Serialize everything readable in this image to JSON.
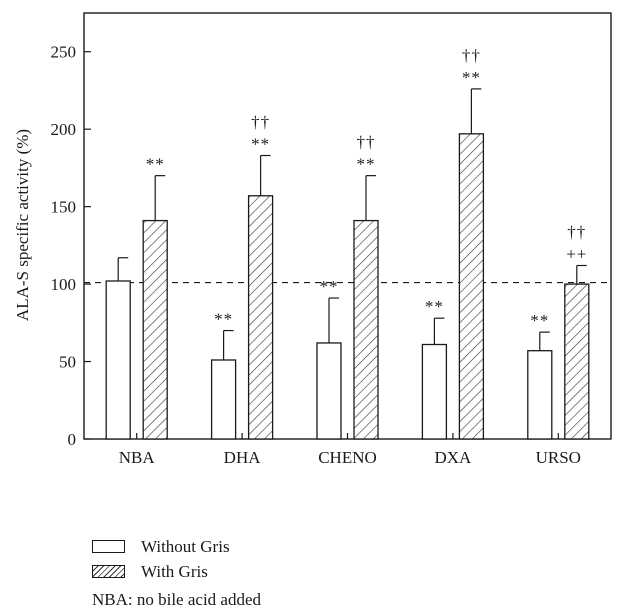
{
  "chart_data": {
    "type": "bar",
    "ylabel": "ALA-S specific activity (%)",
    "ylim": [
      0,
      275
    ],
    "yticks": [
      0,
      50,
      100,
      150,
      200,
      250
    ],
    "reference_line": 101,
    "categories": [
      "NBA",
      "DHA",
      "CHENO",
      "DXA",
      "URSO"
    ],
    "series": [
      {
        "name": "Without Gris",
        "fill": "open",
        "values": [
          102,
          51,
          62,
          61,
          57
        ],
        "errors": [
          15,
          19,
          29,
          17,
          12
        ],
        "annotations": [
          [],
          [
            "**"
          ],
          [
            "**"
          ],
          [
            "**"
          ],
          [
            "**"
          ]
        ]
      },
      {
        "name": "With Gris",
        "fill": "hatched",
        "values": [
          141,
          157,
          141,
          197,
          100
        ],
        "errors": [
          29,
          26,
          29,
          29,
          12
        ],
        "annotations": [
          [
            "**"
          ],
          [
            "**",
            "††"
          ],
          [
            "**",
            "††"
          ],
          [
            "**",
            "††"
          ],
          [
            "++",
            "††"
          ]
        ]
      }
    ]
  },
  "legend": {
    "without_label": "Without Gris",
    "with_label": "With Gris"
  },
  "note": "NBA: no bile acid added",
  "colors": {
    "stroke": "#1a1a1a",
    "hatch": "#333333",
    "background": "#ffffff"
  }
}
